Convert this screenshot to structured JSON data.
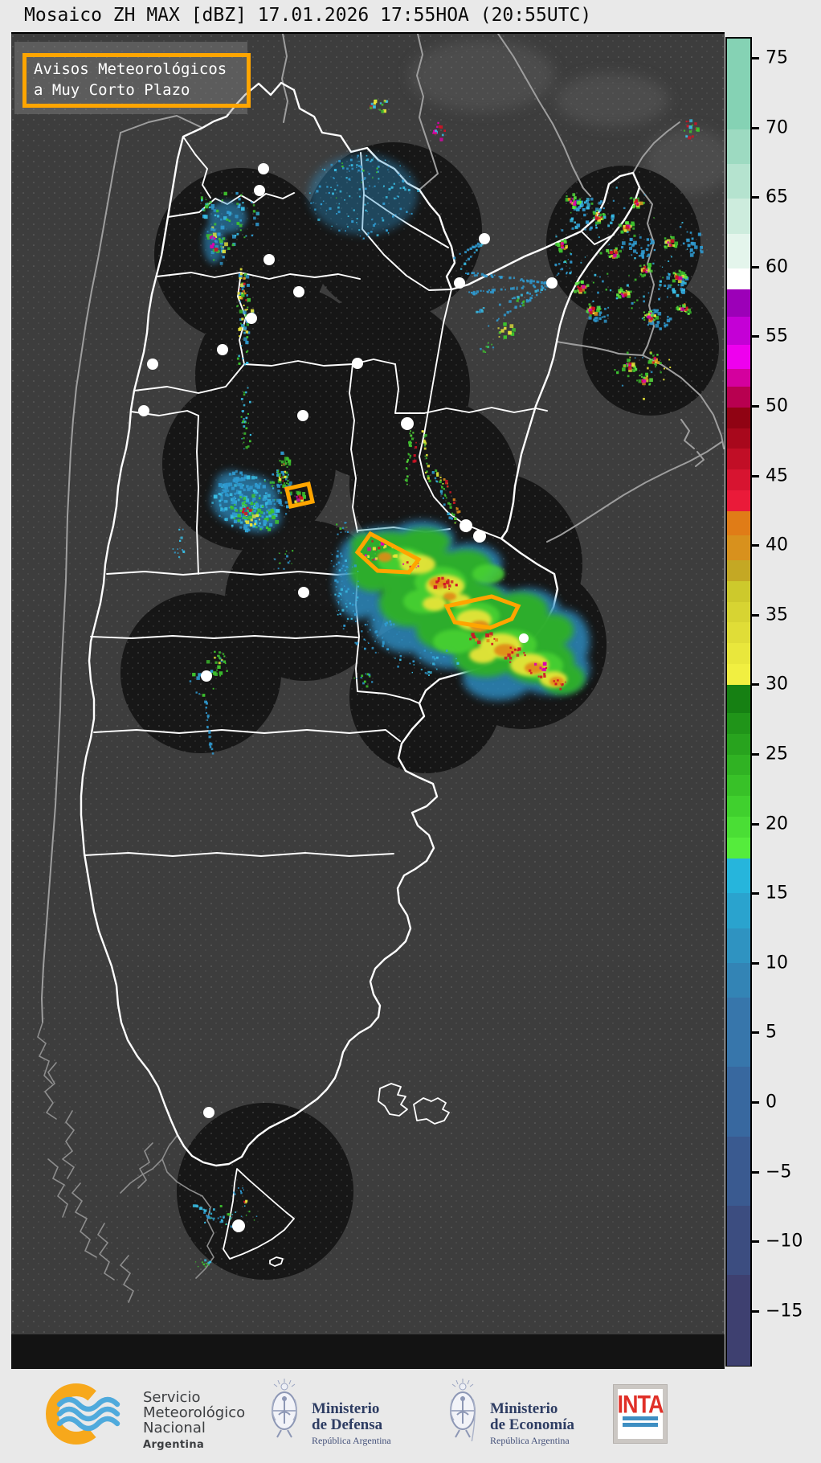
{
  "title": "Mosaico ZH MAX [dBZ] 17.01.2026 17:55HOA (20:55UTC)",
  "warning_banner": {
    "line1": "Avisos Meteorológicos",
    "line2": "a Muy Corto Plazo",
    "border_color": "#FFA500"
  },
  "map": {
    "background_color": "#3d3d3d",
    "radar_coverage_color": "#141414",
    "province_border_color": "#ffffff",
    "neighbor_border_color": "#9e9e9e",
    "warning_polygon_color": "#FFA500",
    "city_marker_color": "#ffffff"
  },
  "colorbar": {
    "unit": "dBZ",
    "vmin": -19,
    "vmax": 76.5,
    "tick_values": [
      75,
      70,
      65,
      60,
      55,
      50,
      45,
      40,
      35,
      30,
      25,
      20,
      15,
      10,
      5,
      0,
      -5,
      -10,
      -15
    ],
    "bands": [
      [
        -19,
        -12.5,
        "#3e4070"
      ],
      [
        -12.5,
        -7.5,
        "#3c4d80"
      ],
      [
        -7.5,
        -2.5,
        "#3a5a90"
      ],
      [
        -2.5,
        2.5,
        "#38689f"
      ],
      [
        2.5,
        7.5,
        "#3776ab"
      ],
      [
        7.5,
        10,
        "#3384b5"
      ],
      [
        10,
        12.5,
        "#2f93c1"
      ],
      [
        12.5,
        15,
        "#2aa3ce"
      ],
      [
        15,
        17.5,
        "#26b5dc"
      ],
      [
        17.5,
        19,
        "#55ec3c"
      ],
      [
        19,
        20.5,
        "#4ade35"
      ],
      [
        20.5,
        22,
        "#40d02e"
      ],
      [
        22,
        23.5,
        "#38c128"
      ],
      [
        23.5,
        25,
        "#30b223"
      ],
      [
        25,
        26.5,
        "#28a31e"
      ],
      [
        26.5,
        28,
        "#209419"
      ],
      [
        28,
        30,
        "#168013"
      ],
      [
        30,
        31.5,
        "#f1ef41"
      ],
      [
        31.5,
        33,
        "#e9e73c"
      ],
      [
        33,
        34.5,
        "#e0dd37"
      ],
      [
        34.5,
        36,
        "#d7d432"
      ],
      [
        36,
        37.5,
        "#cdc92c"
      ],
      [
        37.5,
        39,
        "#c4a824"
      ],
      [
        39,
        40.75,
        "#d8911d"
      ],
      [
        40.75,
        42.5,
        "#e07c17"
      ],
      [
        42.5,
        44,
        "#ea1a39"
      ],
      [
        44,
        45.5,
        "#d71430"
      ],
      [
        45.5,
        47,
        "#c10e26"
      ],
      [
        47,
        48.5,
        "#a8081c"
      ],
      [
        48.5,
        50,
        "#900313"
      ],
      [
        50,
        51.5,
        "#b80050"
      ],
      [
        51.5,
        52.75,
        "#d4009e"
      ],
      [
        52.75,
        54.5,
        "#ee00ee"
      ],
      [
        54.5,
        56.5,
        "#c400d6"
      ],
      [
        56.5,
        58.5,
        "#9c00b8"
      ],
      [
        58.5,
        60,
        "#ffffff"
      ],
      [
        60,
        62.5,
        "#e4f5ec"
      ],
      [
        62.5,
        65,
        "#cdecdd"
      ],
      [
        65,
        67.5,
        "#b5e3cf"
      ],
      [
        67.5,
        70,
        "#9ddac1"
      ],
      [
        70,
        76.5,
        "#85d2b4"
      ]
    ]
  },
  "footer": {
    "smn": {
      "line1": "Servicio",
      "line2": "Meteorológico",
      "line3": "Nacional",
      "country": "Argentina"
    },
    "defensa": {
      "line1": "Ministerio",
      "line2": "de Defensa",
      "sub": "República Argentina"
    },
    "economia": {
      "line1": "Ministerio",
      "line2": "de Economía",
      "sub": "República Argentina"
    },
    "inta": {
      "label": "INTA"
    }
  }
}
